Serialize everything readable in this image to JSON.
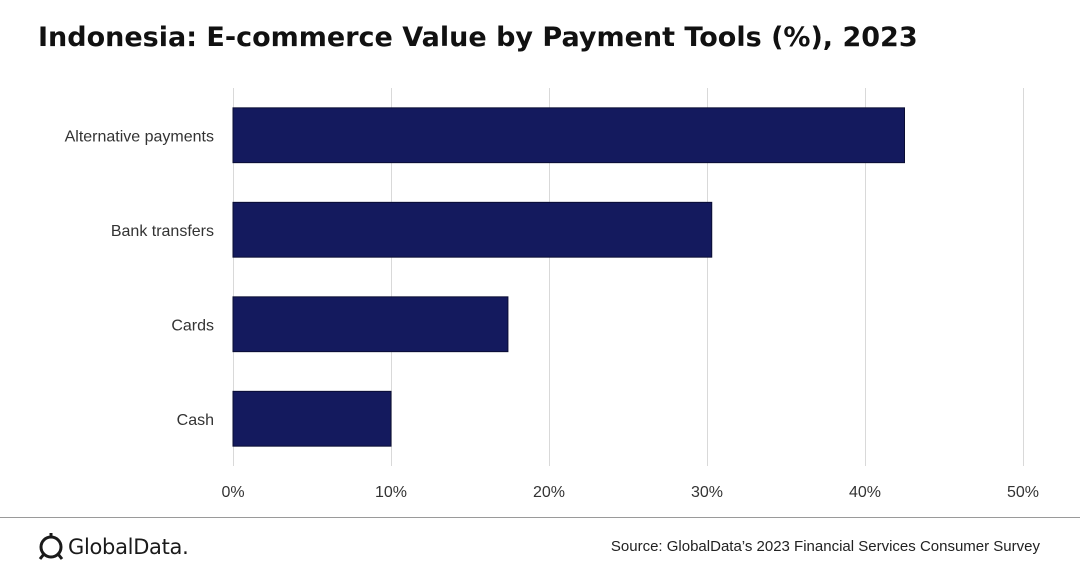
{
  "chart_data": {
    "type": "bar",
    "orientation": "horizontal",
    "title": "Indonesia: E-commerce Value by Payment Tools (%), 2023",
    "categories": [
      "Alternative payments",
      "Bank transfers",
      "Cards",
      "Cash"
    ],
    "values": [
      42.5,
      30.3,
      17.4,
      10.0
    ],
    "xlim": [
      0,
      50
    ],
    "xticks": [
      "0%",
      "10%",
      "20%",
      "30%",
      "40%",
      "50%"
    ],
    "xtick_values": [
      0,
      10,
      20,
      30,
      40,
      50
    ],
    "grid": "vertical",
    "legend": "none",
    "colors": {
      "bar": "#141a5e",
      "bar_border": "#0a0d33",
      "grid": "#d9d9d9"
    }
  },
  "footer": {
    "brand": "GlobalData.",
    "source": "Source: GlobalData’s 2023 Financial Services Consumer Survey"
  }
}
